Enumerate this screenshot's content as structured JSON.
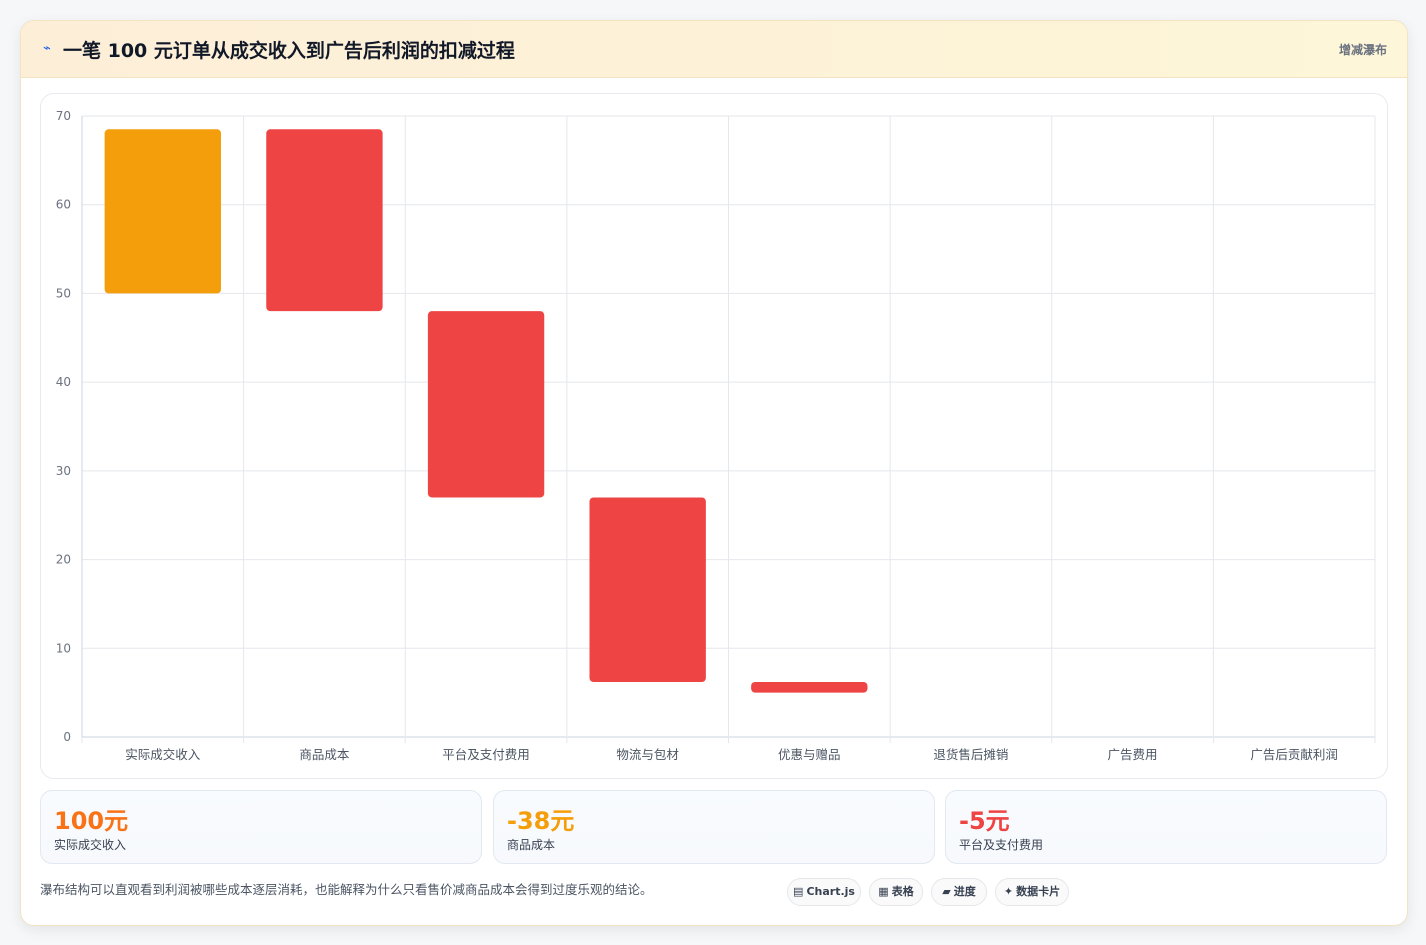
{
  "header": {
    "icon": "lightning-icon",
    "title": "一笔 100 元订单从成交收入到广告后利润的扣减过程",
    "tag": "增减瀑布"
  },
  "colors": {
    "start": "#f59e0b",
    "decrease": "#ef4444"
  },
  "chart_data": {
    "type": "bar",
    "subtype": "waterfall",
    "categories": [
      "实际成交收入",
      "商品成本",
      "平台及支付费用",
      "物流与包材",
      "优惠与赠品",
      "退货售后摊销",
      "广告费用",
      "广告后贡献利润"
    ],
    "series": [
      {
        "ranges": [
          [
            50,
            68.5
          ],
          [
            48,
            68.5
          ],
          [
            27,
            48
          ],
          [
            6.2,
            27
          ],
          [
            5,
            6.2
          ],
          null,
          null,
          null
        ]
      }
    ],
    "ylim": [
      0,
      70
    ],
    "yticks": [
      0,
      10,
      20,
      30,
      40,
      50,
      60,
      70
    ],
    "grid": true,
    "legend": "none"
  },
  "stats": [
    {
      "value": "100元",
      "label": "实际成交收入",
      "color": "#f97316"
    },
    {
      "value": "-38元",
      "label": "商品成本",
      "color": "#f59e0b"
    },
    {
      "value": "-5元",
      "label": "平台及支付费用",
      "color": "#ef4444"
    }
  ],
  "note": "瀑布结构可以直观看到利润被哪些成本逐层消耗，也能解释为什么只看售价减商品成本会得到过度乐观的结论。",
  "pills": [
    {
      "icon": "▤",
      "label": "Chart.js"
    },
    {
      "icon": "▦",
      "label": "表格"
    },
    {
      "icon": "▰",
      "label": "进度"
    },
    {
      "icon": "✦",
      "label": "数据卡片"
    }
  ]
}
